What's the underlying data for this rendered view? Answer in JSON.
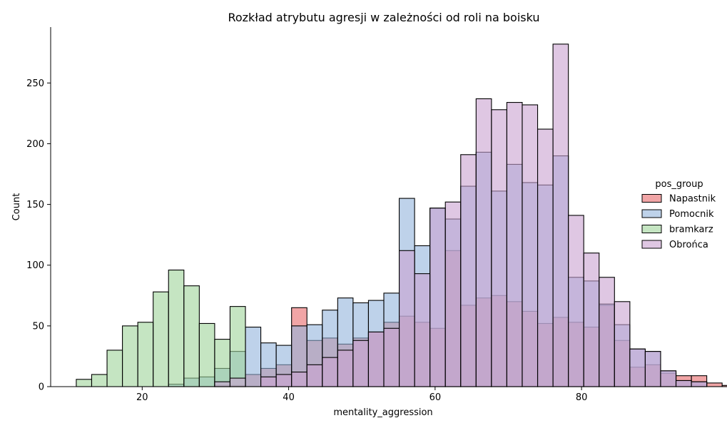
{
  "chart_data": {
    "type": "bar",
    "title": "Rozkład atrybutu agresji w zależności od roli na boisku",
    "xlabel": "mentality_aggression",
    "ylabel": "Count",
    "xlim": [
      7.5,
      98.5
    ],
    "ylim": [
      0,
      296
    ],
    "xticks": [
      20,
      40,
      60,
      80
    ],
    "yticks": [
      0,
      50,
      100,
      150,
      200,
      250
    ],
    "bin_start": 11,
    "bin_width": 2.1,
    "grid": false,
    "legend": {
      "title": "pos_group",
      "placement": "right"
    },
    "series": [
      {
        "name": "Napastnik",
        "color": "#e8696a",
        "values": [
          0,
          0,
          0,
          0,
          0,
          0,
          0,
          0,
          0,
          1,
          1,
          10,
          15,
          18,
          65,
          38,
          40,
          35,
          40,
          45,
          53,
          58,
          53,
          48,
          112,
          67,
          73,
          75,
          70,
          62,
          52,
          57,
          53,
          49,
          67,
          38,
          16,
          18,
          11,
          9,
          9,
          3,
          1,
          1
        ]
      },
      {
        "name": "Pomocnik",
        "color": "#92b4dc",
        "values": [
          0,
          0,
          0,
          0,
          0,
          0,
          2,
          7,
          8,
          15,
          29,
          49,
          36,
          34,
          50,
          51,
          63,
          73,
          69,
          71,
          77,
          155,
          116,
          147,
          138,
          165,
          193,
          161,
          183,
          168,
          166,
          190,
          90,
          87,
          68,
          51,
          31,
          29,
          13,
          5,
          4,
          0,
          0,
          0
        ]
      },
      {
        "name": "bramkarz",
        "color": "#9ed39a",
        "values": [
          6,
          10,
          30,
          50,
          53,
          78,
          96,
          83,
          52,
          39,
          66,
          0,
          0,
          0,
          0,
          0,
          0,
          0,
          0,
          0,
          0,
          0,
          0,
          0,
          0,
          0,
          0,
          0,
          0,
          0,
          0,
          0,
          0,
          0,
          0,
          0,
          0,
          0,
          0,
          0,
          0,
          0,
          0,
          0
        ]
      },
      {
        "name": "Obrońca",
        "color": "#c9a2d1",
        "values": [
          0,
          0,
          0,
          0,
          0,
          0,
          0,
          0,
          0,
          4,
          7,
          0,
          8,
          10,
          12,
          18,
          24,
          30,
          38,
          45,
          48,
          112,
          93,
          147,
          152,
          191,
          237,
          228,
          234,
          232,
          212,
          282,
          141,
          110,
          90,
          70,
          31,
          29,
          13,
          5,
          4,
          0,
          0,
          0
        ]
      }
    ]
  }
}
